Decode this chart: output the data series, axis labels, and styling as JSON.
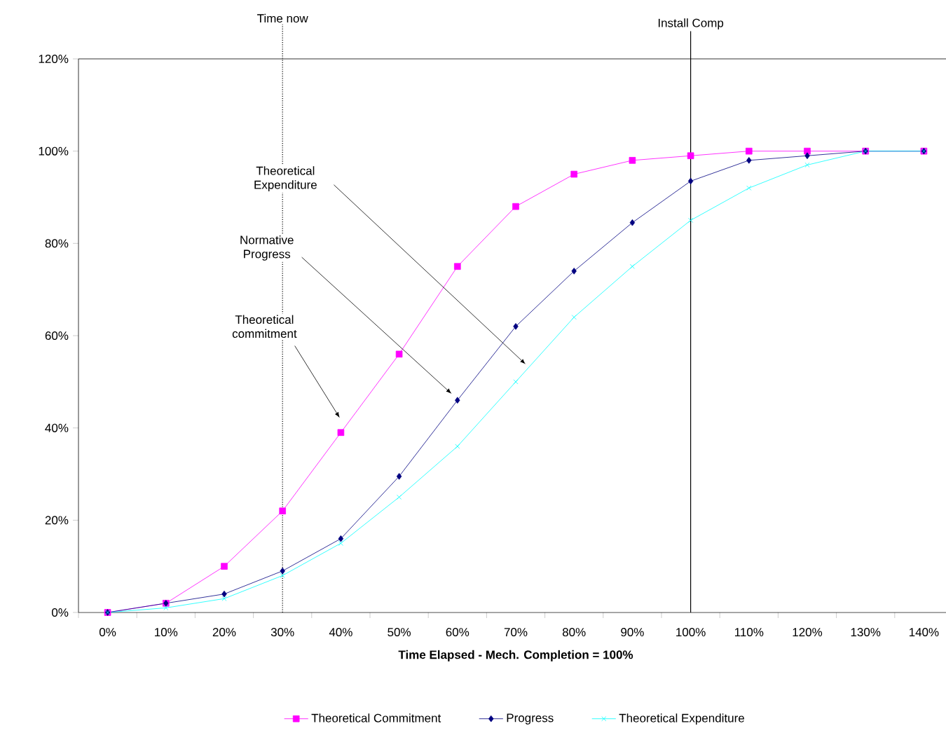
{
  "chart_data": {
    "type": "line",
    "xlabel": "Time Elapsed - Mech. Completion = 100%",
    "categories": [
      "0%",
      "10%",
      "20%",
      "30%",
      "40%",
      "50%",
      "60%",
      "70%",
      "80%",
      "90%",
      "100%",
      "110%",
      "120%",
      "130%",
      "140%"
    ],
    "series": [
      {
        "name": "Theoretical Commitment",
        "color": "#ff00ff",
        "marker": "square",
        "values": [
          0,
          2,
          10,
          22,
          39,
          56,
          75,
          88,
          95,
          98,
          99,
          100,
          100,
          100,
          100
        ]
      },
      {
        "name": "Progress",
        "color": "#000080",
        "marker": "diamond",
        "values": [
          0,
          2,
          4,
          9,
          16,
          29.5,
          46,
          62,
          74,
          84.5,
          93.5,
          98,
          99,
          100,
          100
        ]
      },
      {
        "name": "Theoretical Expenditure",
        "color": "#00ffff",
        "marker": "cross",
        "values": [
          0,
          1,
          3,
          8,
          15,
          25,
          36,
          50,
          64,
          75,
          85,
          92,
          97,
          100,
          100
        ]
      }
    ],
    "ylim": [
      0,
      120
    ],
    "yticks": [
      {
        "value": 0,
        "label": "0%"
      },
      {
        "value": 20,
        "label": "20%"
      },
      {
        "value": 40,
        "label": "40%"
      },
      {
        "value": 60,
        "label": "60%"
      },
      {
        "value": 80,
        "label": "80%"
      },
      {
        "value": 100,
        "label": "100%"
      },
      {
        "value": 120,
        "label": "120%"
      }
    ],
    "ref_lines": [
      {
        "axis": "x",
        "value": "30%",
        "label": "Time now",
        "line_style": "dotted",
        "color": "#000000"
      },
      {
        "axis": "x",
        "value": "100%",
        "label": "Install Comp",
        "line_style": "solid",
        "color": "#000000"
      }
    ],
    "annotations": [
      "Theoretical Expenditure",
      "Normative Progress",
      "Theoretical commitment"
    ],
    "grid": false,
    "legend": "bottom",
    "line_style": "solid"
  }
}
